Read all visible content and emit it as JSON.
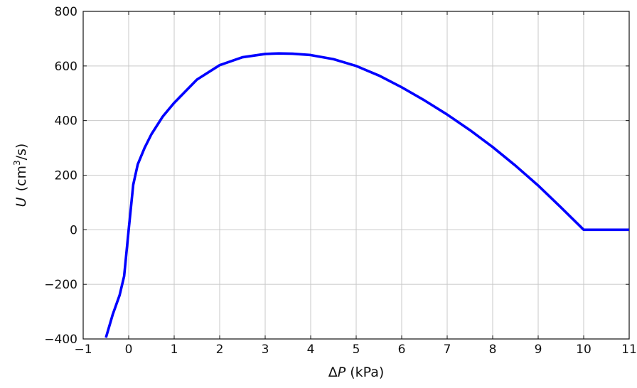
{
  "chart_data": {
    "type": "line",
    "xlabel": {
      "prefix": "Δ",
      "var": "P",
      "unit": "(kPa)"
    },
    "ylabel": {
      "var": "U",
      "unit_pre": "(cm",
      "unit_sup": "3",
      "unit_post": "/s)"
    },
    "xlim": [
      -1,
      11
    ],
    "ylim": [
      -400,
      800
    ],
    "xticks": [
      -1,
      0,
      1,
      2,
      3,
      4,
      5,
      6,
      7,
      8,
      9,
      10,
      11
    ],
    "yticks": [
      -400,
      -200,
      0,
      200,
      400,
      600,
      800
    ],
    "xtick_labels": [
      "−1",
      "0",
      "1",
      "2",
      "3",
      "4",
      "5",
      "6",
      "7",
      "8",
      "9",
      "10",
      "11"
    ],
    "ytick_labels": [
      "−400",
      "−200",
      "0",
      "200",
      "400",
      "600",
      "800"
    ],
    "grid": true,
    "series": [
      {
        "color": "#0000ff",
        "x": [
          -0.5,
          -0.35,
          -0.2,
          -0.1,
          0.0,
          0.1,
          0.2,
          0.35,
          0.5,
          0.75,
          1.0,
          1.5,
          2.0,
          2.5,
          3.0,
          3.3,
          3.6,
          4.0,
          4.5,
          5.0,
          5.5,
          6.0,
          6.5,
          7.0,
          7.5,
          8.0,
          8.5,
          9.0,
          9.5,
          10.0,
          10.5,
          11.0
        ],
        "y": [
          -395,
          -310,
          -240,
          -170,
          0,
          165,
          240,
          300,
          350,
          415,
          465,
          550,
          603,
          632,
          644,
          646,
          645,
          640,
          625,
          600,
          565,
          522,
          474,
          422,
          365,
          303,
          235,
          162,
          82,
          0,
          0,
          0
        ]
      }
    ]
  }
}
